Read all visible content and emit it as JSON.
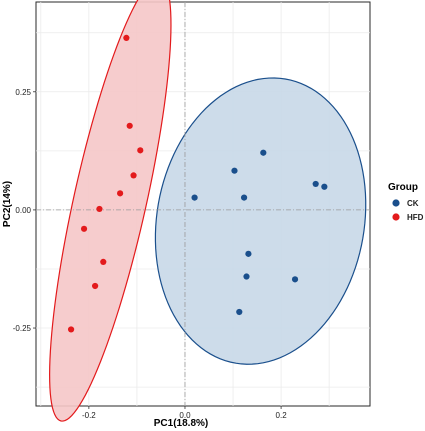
{
  "chart_data": {
    "type": "scatter",
    "xlabel": "PC1(18.8%)",
    "ylabel": "PC2(14%)",
    "xlim": [
      -0.31,
      0.385
    ],
    "ylim": [
      -0.415,
      0.44
    ],
    "x_ticks": [
      {
        "value": -0.2,
        "label": "-0.2"
      },
      {
        "value": 0.0,
        "label": "0.0"
      },
      {
        "value": 0.2,
        "label": "0.2"
      }
    ],
    "y_ticks": [
      {
        "value": -0.25,
        "label": "-0.25"
      },
      {
        "value": 0.0,
        "label": "0.00"
      },
      {
        "value": 0.25,
        "label": "0.25"
      }
    ],
    "grid": true,
    "zero_lines": true,
    "legend": {
      "title": "Group",
      "placement": "right",
      "entries": [
        {
          "label": "CK",
          "color": "#1a4f8c"
        },
        {
          "label": "HFD",
          "color": "#e31a1c"
        }
      ]
    },
    "series": [
      {
        "name": "CK",
        "color": "#1a4f8c",
        "ellipse_fill": "#c8d8e8",
        "ellipse_stroke": "#1a4f8c",
        "points": [
          {
            "x": 0.163,
            "y": 0.121
          },
          {
            "x": 0.103,
            "y": 0.083
          },
          {
            "x": 0.272,
            "y": 0.055
          },
          {
            "x": 0.29,
            "y": 0.049
          },
          {
            "x": 0.02,
            "y": 0.026
          },
          {
            "x": 0.123,
            "y": 0.026
          },
          {
            "x": 0.132,
            "y": -0.093
          },
          {
            "x": 0.229,
            "y": -0.147
          },
          {
            "x": 0.128,
            "y": -0.141
          },
          {
            "x": 0.113,
            "y": -0.216
          }
        ]
      },
      {
        "name": "HFD",
        "color": "#e31a1c",
        "ellipse_fill": "#f5c6c8",
        "ellipse_stroke": "#e31a1c",
        "points": [
          {
            "x": -0.122,
            "y": 0.364
          },
          {
            "x": -0.115,
            "y": 0.178
          },
          {
            "x": -0.093,
            "y": 0.126
          },
          {
            "x": -0.107,
            "y": 0.073
          },
          {
            "x": -0.135,
            "y": 0.035
          },
          {
            "x": -0.178,
            "y": 0.002
          },
          {
            "x": -0.21,
            "y": -0.04
          },
          {
            "x": -0.17,
            "y": -0.11
          },
          {
            "x": -0.187,
            "y": -0.161
          },
          {
            "x": -0.237,
            "y": -0.253
          }
        ]
      }
    ]
  }
}
